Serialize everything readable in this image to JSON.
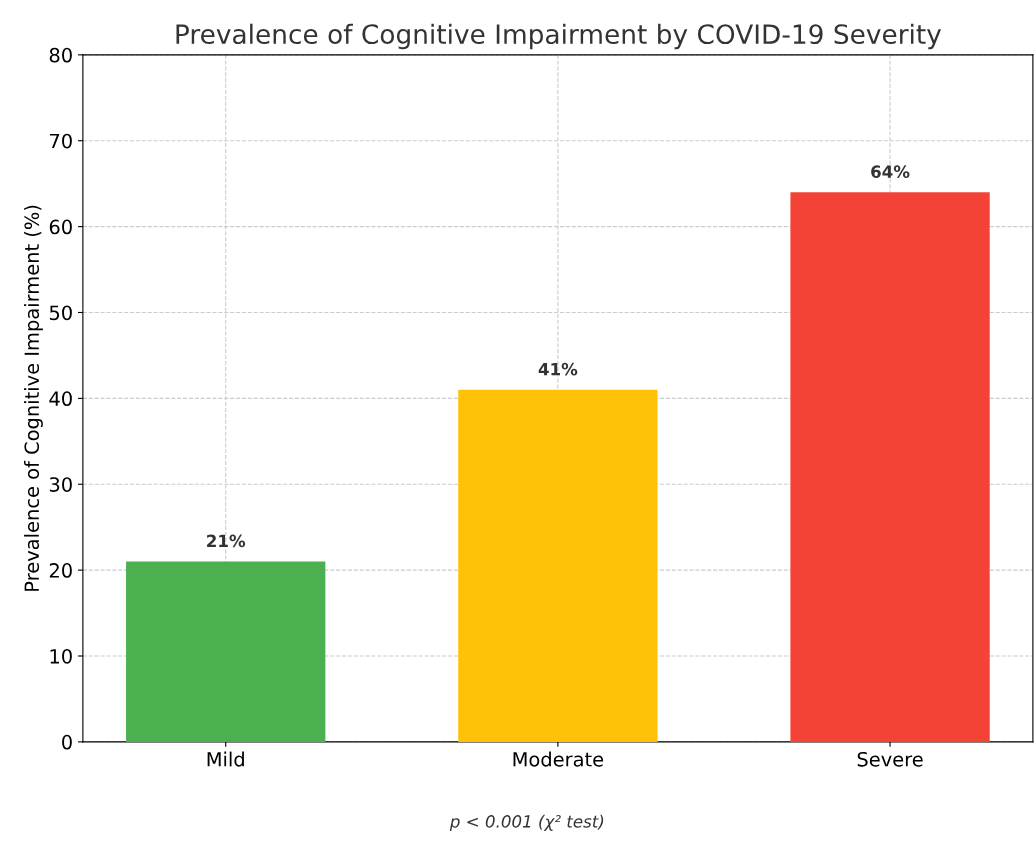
{
  "chart_data": {
    "type": "bar",
    "title": "Prevalence of Cognitive Impairment by COVID-19 Severity",
    "ylabel": "Prevalence of Cognitive Impairment (%)",
    "categories": [
      "Mild",
      "Moderate",
      "Severe"
    ],
    "values": [
      21,
      41,
      64
    ],
    "colors": [
      "#4caf50",
      "#ffc107",
      "#f44336"
    ],
    "value_labels": [
      "21%",
      "41%",
      "64%"
    ],
    "ylim": [
      0,
      80
    ],
    "yticks": [
      0,
      10,
      20,
      30,
      40,
      50,
      60,
      70,
      80
    ],
    "grid": true,
    "annotations": [
      "p < 0.001 (χ² test)"
    ]
  }
}
